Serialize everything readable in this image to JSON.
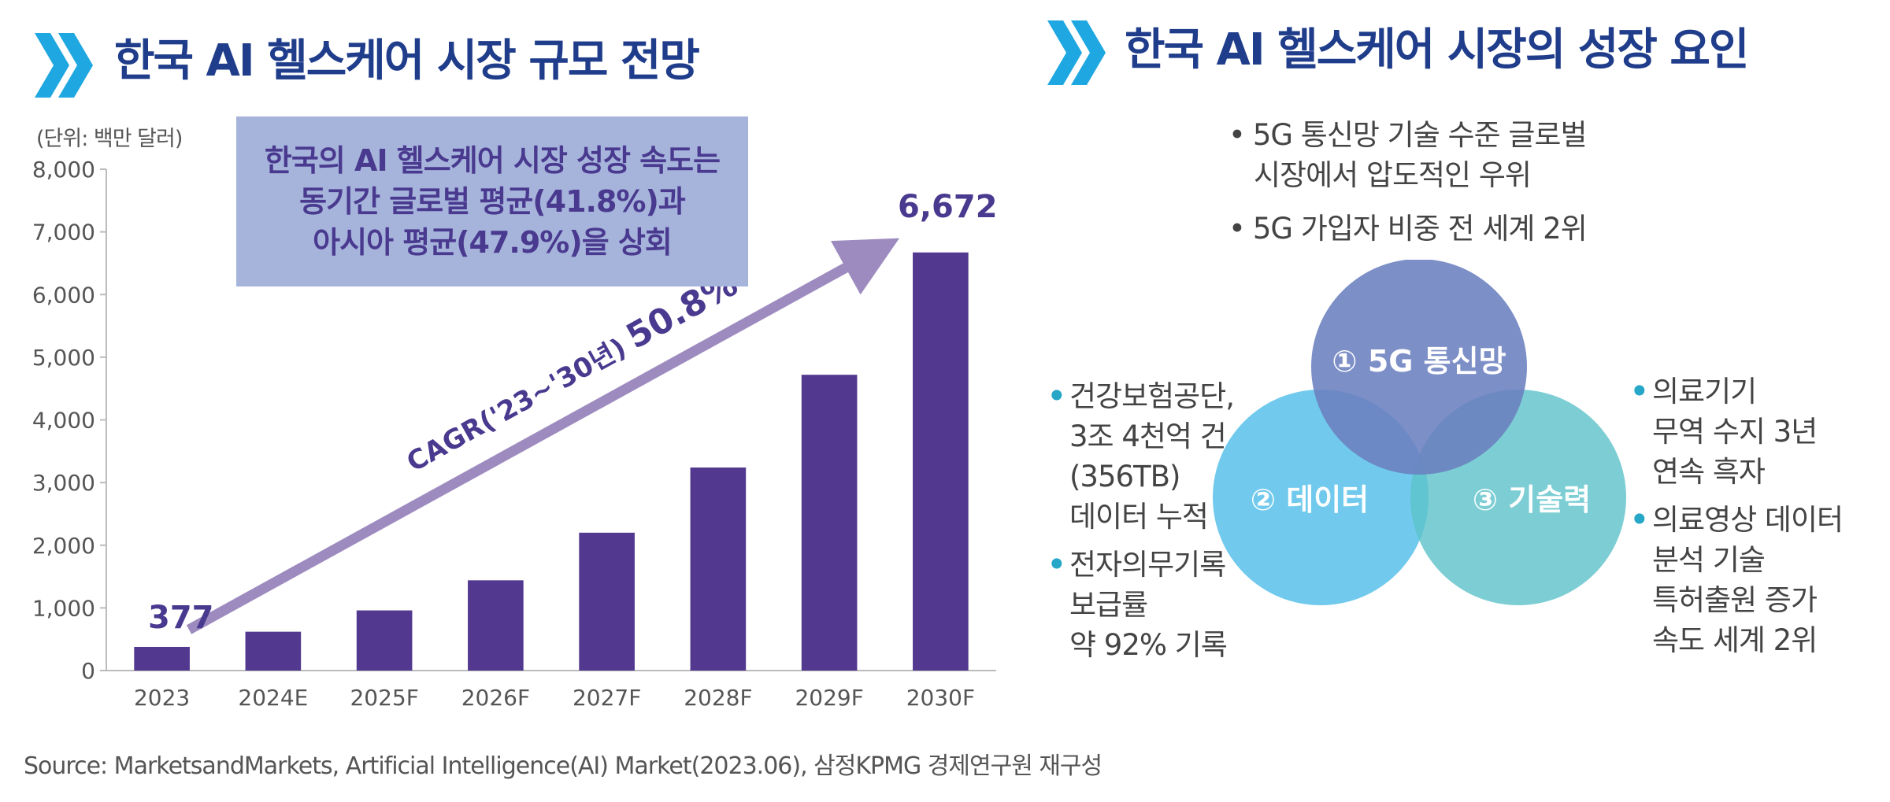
{
  "left_title": "한국 AI 헬스케어 시장 규모 전망",
  "right_title": "한국 AI 헬스케어 시장의 성장 요인",
  "unit_label": "(단위: 백만 달러)",
  "callout_lines": [
    "한국의 AI 헬스케어 시장 성장 속도는",
    "동기간 글로벌 평균(41.8%)과",
    "아시아 평균(47.9%)을 상회"
  ],
  "cagr_label": "CAGR('23~'30년)",
  "cagr_value": "50.8%",
  "first_value_label": "377",
  "last_value_label": "6,672",
  "chart_data": {
    "type": "bar",
    "title": "한국 AI 헬스케어 시장 규모 전망",
    "ylabel": "(단위: 백만 달러)",
    "xlabel": "",
    "categories": [
      "2023",
      "2024E",
      "2025F",
      "2026F",
      "2027F",
      "2028F",
      "2029F",
      "2030F"
    ],
    "values": [
      377,
      620,
      960,
      1440,
      2200,
      3240,
      4720,
      6672
    ],
    "ylim": [
      0,
      8000
    ],
    "yticks": [
      "0",
      "1,000",
      "2,000",
      "3,000",
      "4,000",
      "5,000",
      "6,000",
      "7,000",
      "8,000"
    ],
    "bar_color": "#52388f",
    "grid": false
  },
  "top_bullets": [
    [
      "5G 통신망 기술 수준 글로벌",
      "시장에서 압도적인 우위"
    ],
    [
      "5G 가입자 비중 전 세계 2위"
    ]
  ],
  "venn": {
    "circle1": "① 5G 통신망",
    "circle2": "② 데이터",
    "circle3": "③ 기술력",
    "color1": "#6b7fbf",
    "color2": "#4dbde8",
    "color3": "#5cc2c9"
  },
  "left_bullets": [
    [
      "건강보험공단,",
      "3조 4천억 건",
      "(356TB)",
      "데이터 누적"
    ],
    [
      "전자의무기록",
      "보급률",
      "약 92% 기록"
    ]
  ],
  "right_bullets": [
    [
      "의료기기",
      "무역 수지 3년",
      "연속 흑자"
    ],
    [
      "의료영상 데이터",
      "분석 기술",
      "특허출원 증가",
      "속도 세계 2위"
    ]
  ],
  "source": "Source: MarketsandMarkets, Artificial Intelligence(AI) Market(2023.06), 삼정KPMG 경제연구원 재구성"
}
